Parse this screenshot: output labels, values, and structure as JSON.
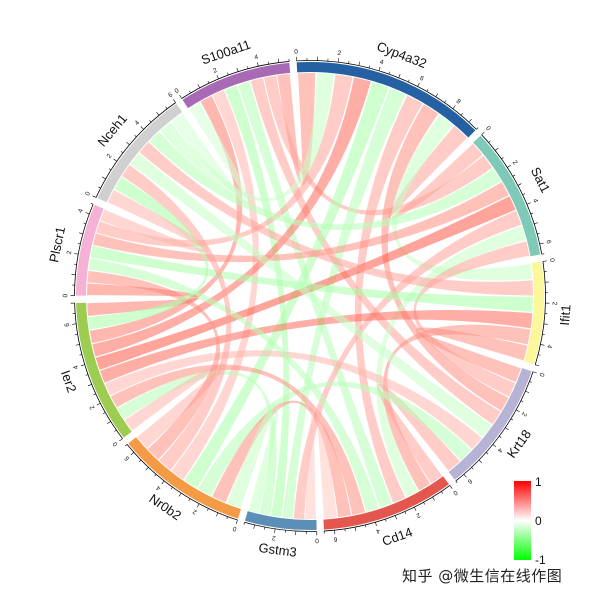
{
  "chart_data": {
    "type": "chord",
    "title": "",
    "sectors": [
      {
        "name": "S100a11",
        "length": 5.5,
        "color": "#a86ab5"
      },
      {
        "name": "Cyp4a32",
        "length": 9.5,
        "color": "#2460a2"
      },
      {
        "name": "Sat1",
        "length": 6.5,
        "color": "#7fc9b8"
      },
      {
        "name": "Ifit1",
        "length": 5.0,
        "color": "#fbf79a"
      },
      {
        "name": "Krt18",
        "length": 6.5,
        "color": "#b7b3d6"
      },
      {
        "name": "Cd14",
        "length": 6.5,
        "color": "#e4574e"
      },
      {
        "name": "Gstm3",
        "length": 3.5,
        "color": "#5b8fb8"
      },
      {
        "name": "Nr0b2",
        "length": 6.5,
        "color": "#f59a45"
      },
      {
        "name": "Ier2",
        "length": 7.0,
        "color": "#9ccc50"
      },
      {
        "name": "Plscr1",
        "length": 4.5,
        "color": "#f6b2d4"
      },
      {
        "name": "Nceh1",
        "length": 6.0,
        "color": "#d0d0d0"
      }
    ],
    "links": [
      {
        "from": "S100a11",
        "to": "Cyp4a32",
        "value": 0.6
      },
      {
        "from": "S100a11",
        "to": "Sat1",
        "value": 0.5
      },
      {
        "from": "S100a11",
        "to": "Cd14",
        "value": -0.5
      },
      {
        "from": "S100a11",
        "to": "Gstm3",
        "value": -0.6
      },
      {
        "from": "S100a11",
        "to": "Nr0b2",
        "value": 0.4
      },
      {
        "from": "S100a11",
        "to": "Ier2",
        "value": 0.7
      },
      {
        "from": "S100a11",
        "to": "Nceh1",
        "value": -0.3
      },
      {
        "from": "S100a11",
        "to": "Krt18",
        "value": 0.5
      },
      {
        "from": "Cyp4a32",
        "to": "Sat1",
        "value": 0.5
      },
      {
        "from": "Cyp4a32",
        "to": "Ifit1",
        "value": -0.4
      },
      {
        "from": "Cyp4a32",
        "to": "Krt18",
        "value": 0.6
      },
      {
        "from": "Cyp4a32",
        "to": "Cd14",
        "value": 0.5
      },
      {
        "from": "Cyp4a32",
        "to": "Gstm3",
        "value": -0.5
      },
      {
        "from": "Cyp4a32",
        "to": "Nr0b2",
        "value": -0.6
      },
      {
        "from": "Cyp4a32",
        "to": "Ier2",
        "value": 0.8
      },
      {
        "from": "Cyp4a32",
        "to": "Plscr1",
        "value": 0.5
      },
      {
        "from": "Cyp4a32",
        "to": "Nceh1",
        "value": -0.4
      },
      {
        "from": "Sat1",
        "to": "Ier2",
        "value": 0.9
      },
      {
        "from": "Sat1",
        "to": "Nceh1",
        "value": -0.5
      },
      {
        "from": "Sat1",
        "to": "Plscr1",
        "value": 0.6
      },
      {
        "from": "Sat1",
        "to": "Cd14",
        "value": -0.4
      },
      {
        "from": "Sat1",
        "to": "Gstm3",
        "value": 0.5
      },
      {
        "from": "Sat1",
        "to": "Krt18",
        "value": 0.5
      },
      {
        "from": "Ifit1",
        "to": "Ier2",
        "value": 0.8
      },
      {
        "from": "Ifit1",
        "to": "Cd14",
        "value": 0.6
      },
      {
        "from": "Ifit1",
        "to": "Nceh1",
        "value": 0.5
      },
      {
        "from": "Ifit1",
        "to": "Krt18",
        "value": 0.6
      },
      {
        "from": "Ifit1",
        "to": "Plscr1",
        "value": -0.6
      },
      {
        "from": "Krt18",
        "to": "Cd14",
        "value": 0.5
      },
      {
        "from": "Krt18",
        "to": "Nr0b2",
        "value": -0.5
      },
      {
        "from": "Krt18",
        "to": "Ier2",
        "value": 0.4
      },
      {
        "from": "Krt18",
        "to": "Nceh1",
        "value": -0.4
      },
      {
        "from": "Cd14",
        "to": "Nr0b2",
        "value": 0.6
      },
      {
        "from": "Cd14",
        "to": "Ier2",
        "value": 0.6
      },
      {
        "from": "Cd14",
        "to": "Gstm3",
        "value": 0.3
      },
      {
        "from": "Cd14",
        "to": "Plscr1",
        "value": -0.5
      },
      {
        "from": "Gstm3",
        "to": "Nr0b2",
        "value": -0.4
      },
      {
        "from": "Gstm3",
        "to": "Ier2",
        "value": -0.5
      },
      {
        "from": "Nr0b2",
        "to": "Ier2",
        "value": 0.4
      },
      {
        "from": "Nr0b2",
        "to": "Nceh1",
        "value": 0.5
      },
      {
        "from": "Nr0b2",
        "to": "Plscr1",
        "value": 0.6
      },
      {
        "from": "Ier2",
        "to": "Plscr1",
        "value": 0.7
      },
      {
        "from": "Ier2",
        "to": "Nceh1",
        "value": -0.6
      },
      {
        "from": "Plscr1",
        "to": "Nceh1",
        "value": 0.4
      }
    ],
    "legend": {
      "placement": "bottom-right",
      "ticks": [
        "1",
        "0",
        "-1"
      ],
      "color_max": "#ff0000",
      "color_mid": "#ffffff",
      "color_min": "#00ff00"
    }
  },
  "watermark": "知乎 @微生信在线作图"
}
